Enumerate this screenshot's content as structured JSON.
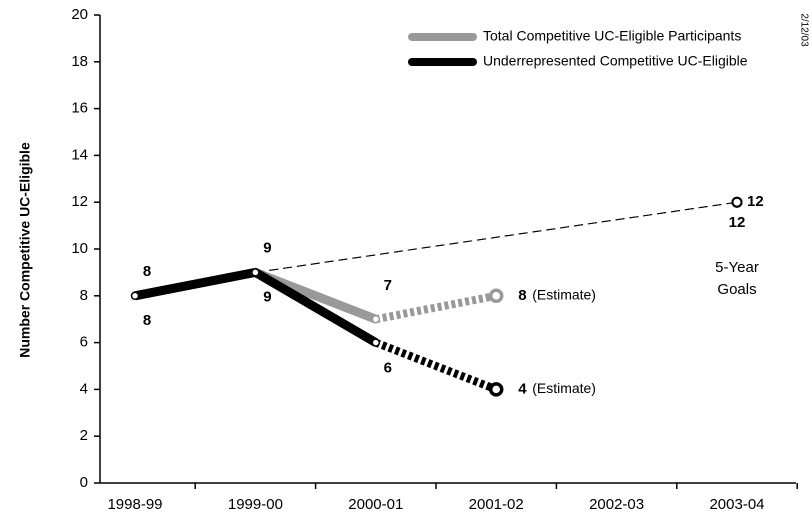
{
  "chart_data": {
    "type": "line",
    "y_label": "Number Competitive UC-Eligible",
    "categories": [
      "1998-99",
      "1999-00",
      "2000-01",
      "2001-02",
      "2002-03",
      "2003-04"
    ],
    "series": [
      {
        "name": "Total Competitive UC-Eligible Participants",
        "color": "#999999",
        "values": [
          8,
          9,
          7,
          8,
          null,
          12
        ]
      },
      {
        "name": "Underrepresented Competitive UC-Eligible",
        "color": "#000000",
        "values": [
          8,
          9,
          6,
          4,
          null,
          12
        ]
      }
    ],
    "estimate_index": 3,
    "goal_index": 5,
    "goal_base_index": 1,
    "estimate_label": "(Estimate)",
    "goal_label": [
      "5-Year",
      "Goals"
    ],
    "date_note": "2/12/03",
    "ylim": [
      0,
      20
    ],
    "yticks": [
      0,
      2,
      4,
      6,
      8,
      10,
      12,
      14,
      16,
      18,
      20
    ],
    "grid": false,
    "legend": "upper right"
  }
}
